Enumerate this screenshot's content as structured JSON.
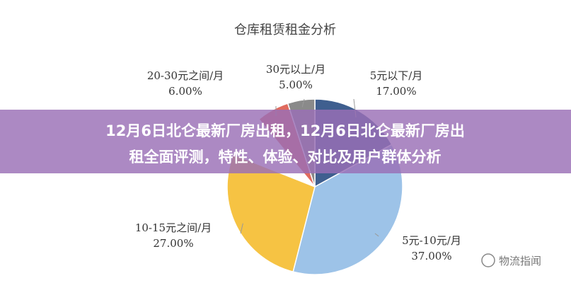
{
  "chart_data": {
    "type": "pie",
    "title": "仓库租赁租金分析",
    "categories": [
      "5元以下/月",
      "5元-10元/月",
      "10-15元之间/月",
      "20-30元之间/月",
      "30元以上/月"
    ],
    "values": [
      17,
      37,
      27,
      6,
      5
    ],
    "value_labels": [
      "17.00%",
      "37.00%",
      "27.00%",
      "6.00%",
      "5.00%"
    ],
    "colors": [
      "#3f5f8f",
      "#9dc3e8",
      "#f6c343",
      "#e06b5e",
      "#8a8a8a"
    ]
  },
  "banner": {
    "line1": "12月6日北仑最新厂房出租，12月6日北仑最新厂房出",
    "line2": "租全面评测，特性、体验、对比及用户群体分析"
  },
  "watermark": "物流指闻"
}
